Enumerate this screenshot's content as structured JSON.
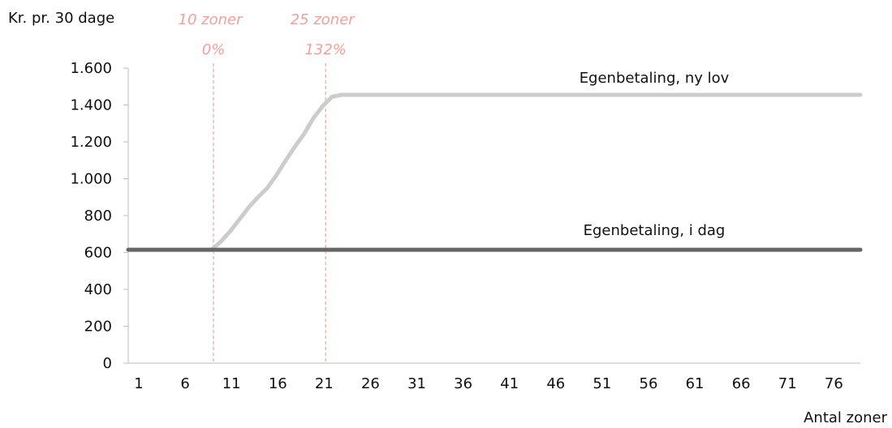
{
  "chart_data": {
    "type": "line",
    "ylabel": "Kr. pr. 30 dage",
    "xlabel": "Antal zoner",
    "ylim": [
      0,
      1600
    ],
    "xlim": [
      1,
      80
    ],
    "y_ticks": [
      0,
      200,
      400,
      600,
      800,
      1000,
      1200,
      1400,
      1600
    ],
    "y_tick_labels": [
      "0",
      "200",
      "400",
      "600",
      "800",
      "1.000",
      "1.200",
      "1.400",
      "1.600"
    ],
    "x_ticks": [
      1,
      6,
      11,
      16,
      21,
      26,
      31,
      36,
      41,
      46,
      51,
      56,
      61,
      66,
      71,
      76
    ],
    "x_tick_labels": [
      "1",
      "6",
      "11",
      "16",
      "21",
      "26",
      "31",
      "36",
      "41",
      "46",
      "51",
      "56",
      "61",
      "66",
      "71",
      "76"
    ],
    "grid": false,
    "series": [
      {
        "name": "Egenbetaling, ny lov",
        "color": "#cccccc",
        "x": [
          1,
          10,
          11,
          12,
          13,
          14,
          15,
          16,
          17,
          18,
          19,
          20,
          21,
          22,
          23,
          24,
          80
        ],
        "y": [
          615,
          615,
          660,
          715,
          780,
          845,
          900,
          950,
          1020,
          1100,
          1175,
          1245,
          1330,
          1395,
          1445,
          1455,
          1455
        ]
      },
      {
        "name": "Egenbetaling, i dag",
        "color": "#666666",
        "x": [
          1,
          80
        ],
        "y": [
          615,
          615
        ]
      }
    ],
    "annotations": [
      {
        "x": 10.2,
        "label_top": "10 zoner",
        "label_bottom": "0%",
        "color": "#f4a09a"
      },
      {
        "x": 22.3,
        "label_top": "25 zoner",
        "label_bottom": "132%",
        "color": "#f4a09a"
      }
    ]
  }
}
